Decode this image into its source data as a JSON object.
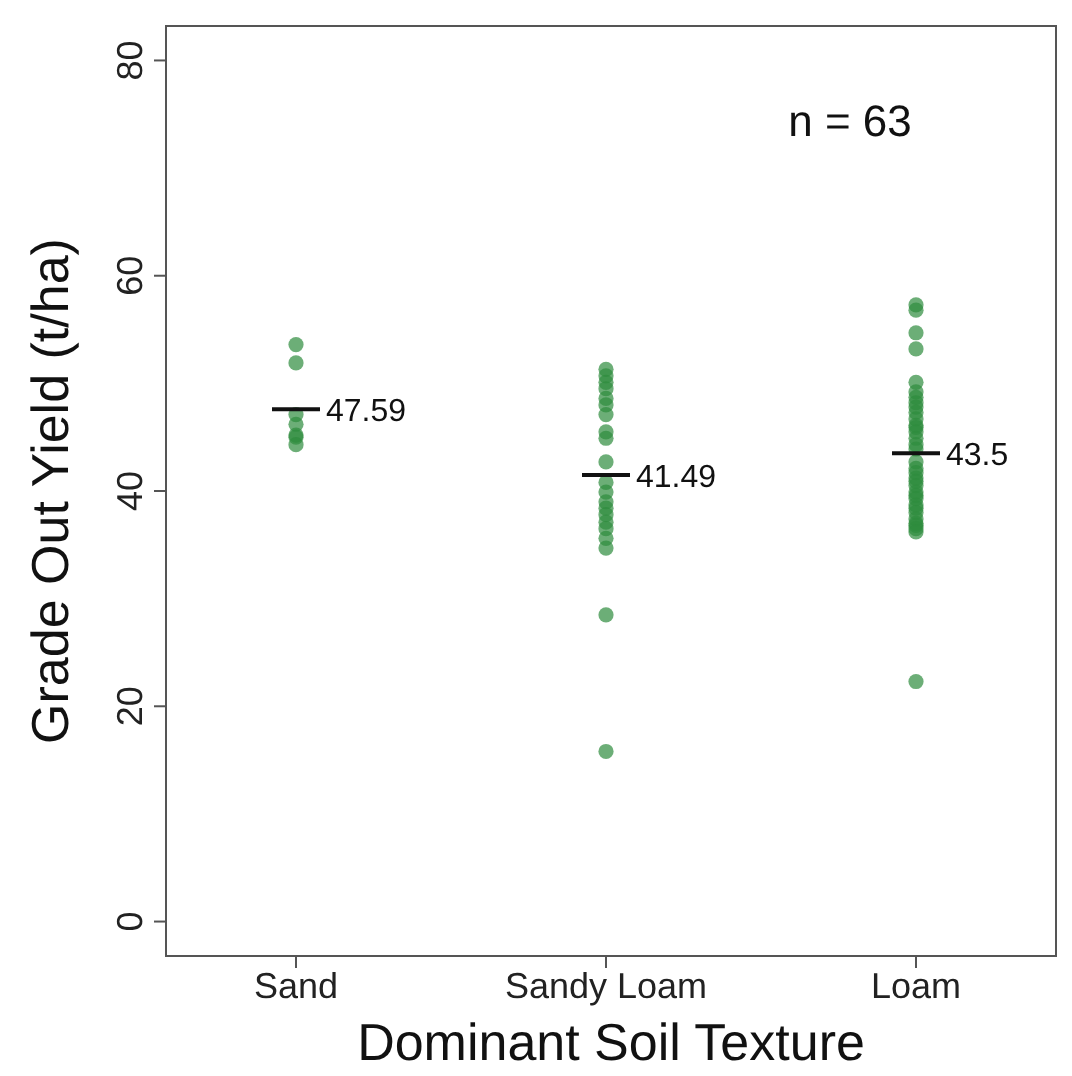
{
  "chart_data": {
    "type": "scatter",
    "xlabel": "Dominant Soil Texture",
    "ylabel": "Grade Out Yield (t/ha)",
    "categories": [
      "Sand",
      "Sandy Loam",
      "Loam"
    ],
    "ylim": [
      -3.2,
      83.2
    ],
    "yticks": [
      0,
      20,
      40,
      60,
      80
    ],
    "grid": false,
    "marker": "circle",
    "series": [
      {
        "color": "#2e8b3d",
        "x": [
          "Sand",
          "Sand",
          "Sand",
          "Sand",
          "Sand",
          "Sand",
          "Sand",
          "Sandy Loam",
          "Sandy Loam",
          "Sandy Loam",
          "Sandy Loam",
          "Sandy Loam",
          "Sandy Loam",
          "Sandy Loam",
          "Sandy Loam",
          "Sandy Loam",
          "Sandy Loam",
          "Sandy Loam",
          "Sandy Loam",
          "Sandy Loam",
          "Sandy Loam",
          "Sandy Loam",
          "Sandy Loam",
          "Sandy Loam",
          "Sandy Loam",
          "Sandy Loam",
          "Sandy Loam",
          "Sandy Loam",
          "Loam",
          "Loam",
          "Loam",
          "Loam",
          "Loam",
          "Loam",
          "Loam",
          "Loam",
          "Loam",
          "Loam",
          "Loam",
          "Loam",
          "Loam",
          "Loam",
          "Loam",
          "Loam",
          "Loam",
          "Loam",
          "Loam",
          "Loam",
          "Loam",
          "Loam",
          "Loam",
          "Loam",
          "Loam",
          "Loam",
          "Loam",
          "Loam",
          "Loam",
          "Loam",
          "Loam",
          "Loam",
          "Loam",
          "Loam",
          "Loam"
        ],
        "values": [
          53.6,
          51.9,
          47.1,
          46.2,
          45.2,
          45.0,
          44.3,
          51.3,
          50.7,
          50.1,
          49.5,
          48.6,
          48.0,
          47.1,
          45.5,
          44.9,
          42.7,
          40.8,
          39.9,
          39.0,
          38.4,
          37.8,
          37.1,
          36.5,
          35.6,
          34.7,
          28.5,
          15.8,
          57.3,
          56.8,
          54.7,
          53.2,
          50.1,
          49.2,
          48.7,
          48.2,
          47.8,
          47.3,
          46.7,
          46.1,
          45.9,
          45.5,
          44.9,
          44.3,
          43.9,
          42.7,
          42.1,
          41.7,
          41.2,
          40.9,
          40.5,
          39.9,
          39.6,
          39.3,
          38.7,
          38.4,
          38.0,
          37.4,
          37.0,
          36.8,
          36.5,
          36.2,
          22.3
        ]
      }
    ],
    "annotations": [
      "n =  63",
      {
        "text": "47.59",
        "x": "Sand",
        "y": 47.59
      },
      {
        "text": "41.49",
        "x": "Sandy Loam",
        "y": 41.49
      },
      {
        "text": "43.5",
        "x": "Loam",
        "y": 43.5
      }
    ]
  }
}
